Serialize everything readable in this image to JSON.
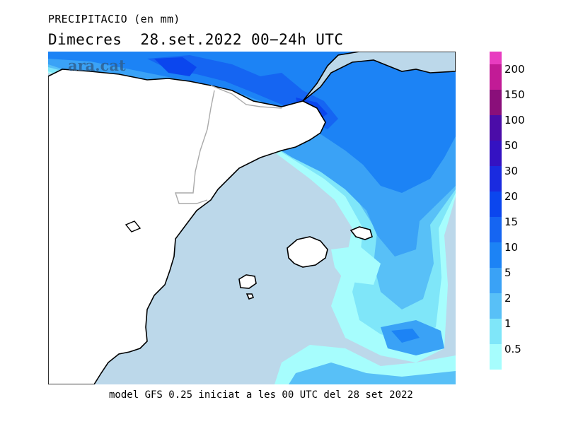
{
  "header": {
    "title": "PRECIPITACIO (en mm)",
    "subtitle": "Dimecres  28.set.2022 00−24h UTC"
  },
  "watermark": {
    "text": "ara.cat"
  },
  "footer": {
    "text": "model GFS 0.25 iniciat a les 00 UTC del 28 set 2022"
  },
  "legend": {
    "items": [
      {
        "label": "200",
        "color": "#e83cc0"
      },
      {
        "label": "150",
        "color": "#c21b96"
      },
      {
        "label": "100",
        "color": "#8a0f7a"
      },
      {
        "label": "50",
        "color": "#4b0ca8"
      },
      {
        "label": "30",
        "color": "#3412c2"
      },
      {
        "label": "20",
        "color": "#1a2be0"
      },
      {
        "label": "15",
        "color": "#0b46ee"
      },
      {
        "label": "10",
        "color": "#1565f2"
      },
      {
        "label": "5",
        "color": "#1c83f5"
      },
      {
        "label": "2",
        "color": "#3aa2f6"
      },
      {
        "label": "1",
        "color": "#58c0f7"
      },
      {
        "label": "0.5",
        "color": "#7fe6f9"
      }
    ],
    "bottom_color": "#a6fdfd"
  },
  "colors": {
    "sea_base": "#bcd8ea",
    "land": "#ffffff",
    "coast": "#000000",
    "border": "#aaaaaa"
  }
}
